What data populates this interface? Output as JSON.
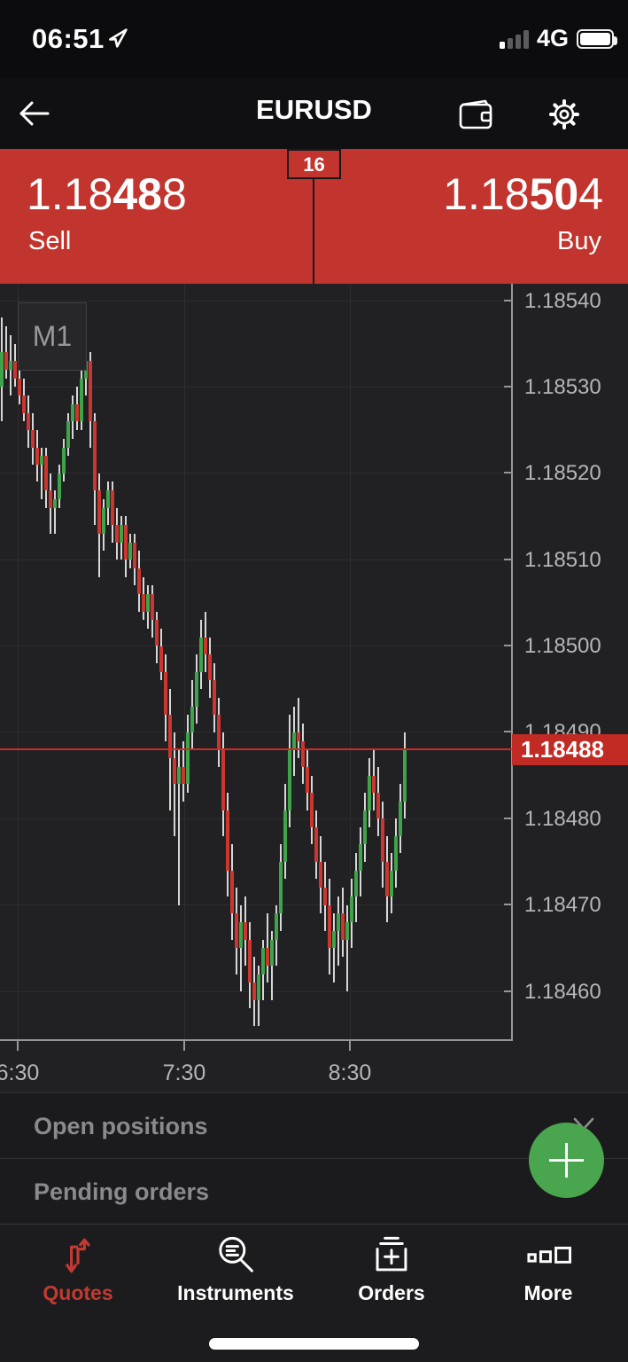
{
  "colors": {
    "panel_red": "#c2342e",
    "price_tag_red": "#c22a24",
    "price_line_red": "#cb2c25",
    "candle_up": "#3fa34a",
    "candle_down": "#cc362e",
    "wick": "#d6d6d6",
    "fab_green": "#4aa64e",
    "active_tab_red": "#c23a32",
    "chart_bg": "#212124"
  },
  "status_bar": {
    "time": "06:51",
    "network": "4G"
  },
  "header": {
    "title": "EURUSD",
    "icons": [
      "back-arrow-icon",
      "wallet-icon",
      "gear-icon"
    ]
  },
  "quote_panel": {
    "sell": {
      "pre": "1.18",
      "bold": "48",
      "post": "8",
      "label": "Sell"
    },
    "buy": {
      "pre": "1.18",
      "bold": "50",
      "post": "4",
      "label": "Buy"
    },
    "spread": "16"
  },
  "chart": {
    "timeframe_label": "M1",
    "current_price": "1.18488"
  },
  "chart_data": {
    "type": "candlestick",
    "symbol": "EURUSD",
    "timeframe": "M1",
    "title": "EURUSD M1 candlestick chart",
    "bid": 1.18488,
    "ask": 1.18504,
    "spread_points": 16,
    "current_price_line": 1.18488,
    "ylim": [
      1.18454,
      1.18542
    ],
    "y_ticks": [
      "1.18540",
      "1.18530",
      "1.18520",
      "1.18510",
      "1.18500",
      "1.18490",
      "1.18480",
      "1.18470",
      "1.18460"
    ],
    "x_ticks": [
      {
        "label": "6:30",
        "x": 20
      },
      {
        "label": "7:30",
        "x": 208
      },
      {
        "label": "8:30",
        "x": 395
      }
    ],
    "time_range_estimate": [
      "6:24",
      "8:51"
    ],
    "price_base": 1.18,
    "price_unit": 1e-05,
    "candles_note": "OHLC as offsets from price_base in units of price_unit, chronological",
    "candles": [
      [
        530,
        538,
        526,
        534
      ],
      [
        534,
        537,
        531,
        532
      ],
      [
        532,
        536,
        529,
        533
      ],
      [
        533,
        535,
        530,
        531
      ],
      [
        531,
        534,
        528,
        529
      ],
      [
        529,
        531,
        526,
        527
      ],
      [
        527,
        529,
        523,
        525
      ],
      [
        525,
        527,
        521,
        523
      ],
      [
        523,
        525,
        519,
        521
      ],
      [
        521,
        523,
        517,
        522
      ],
      [
        522,
        523,
        516,
        518
      ],
      [
        518,
        520,
        513,
        516
      ],
      [
        516,
        518,
        513,
        517
      ],
      [
        517,
        521,
        516,
        520
      ],
      [
        520,
        524,
        519,
        523
      ],
      [
        523,
        527,
        522,
        526
      ],
      [
        526,
        529,
        524,
        528
      ],
      [
        528,
        530,
        525,
        526
      ],
      [
        526,
        532,
        525,
        531
      ],
      [
        531,
        535,
        529,
        533
      ],
      [
        533,
        534,
        523,
        526
      ],
      [
        526,
        527,
        514,
        518
      ],
      [
        518,
        520,
        508,
        513
      ],
      [
        513,
        517,
        511,
        516
      ],
      [
        516,
        519,
        514,
        518
      ],
      [
        518,
        519,
        512,
        514
      ],
      [
        514,
        516,
        510,
        512
      ],
      [
        512,
        515,
        510,
        514
      ],
      [
        514,
        515,
        508,
        510
      ],
      [
        510,
        513,
        509,
        512
      ],
      [
        512,
        513,
        507,
        509
      ],
      [
        509,
        511,
        504,
        506
      ],
      [
        506,
        508,
        503,
        504
      ],
      [
        504,
        507,
        502,
        506
      ],
      [
        506,
        507,
        501,
        503
      ],
      [
        503,
        504,
        498,
        500
      ],
      [
        500,
        502,
        496,
        497
      ],
      [
        497,
        499,
        489,
        492
      ],
      [
        492,
        495,
        481,
        487
      ],
      [
        487,
        490,
        478,
        484
      ],
      [
        484,
        488,
        470,
        486
      ],
      [
        486,
        489,
        482,
        484
      ],
      [
        484,
        492,
        483,
        490
      ],
      [
        490,
        496,
        488,
        493
      ],
      [
        493,
        499,
        491,
        497
      ],
      [
        497,
        503,
        495,
        501
      ],
      [
        501,
        504,
        497,
        499
      ],
      [
        499,
        501,
        494,
        496
      ],
      [
        496,
        498,
        490,
        492
      ],
      [
        492,
        494,
        486,
        488
      ],
      [
        488,
        490,
        478,
        481
      ],
      [
        481,
        483,
        471,
        474
      ],
      [
        474,
        477,
        466,
        469
      ],
      [
        469,
        472,
        462,
        465
      ],
      [
        465,
        470,
        460,
        468
      ],
      [
        468,
        471,
        463,
        466
      ],
      [
        466,
        468,
        458,
        461
      ],
      [
        461,
        464,
        456,
        459
      ],
      [
        459,
        463,
        456,
        462
      ],
      [
        462,
        466,
        459,
        465
      ],
      [
        465,
        469,
        461,
        463
      ],
      [
        463,
        467,
        459,
        466
      ],
      [
        466,
        470,
        463,
        469
      ],
      [
        469,
        477,
        467,
        475
      ],
      [
        475,
        484,
        473,
        481
      ],
      [
        481,
        492,
        479,
        488
      ],
      [
        488,
        493,
        485,
        490
      ],
      [
        490,
        494,
        487,
        489
      ],
      [
        489,
        491,
        484,
        486
      ],
      [
        486,
        488,
        481,
        483
      ],
      [
        483,
        485,
        477,
        479
      ],
      [
        479,
        481,
        473,
        475
      ],
      [
        475,
        478,
        469,
        472
      ],
      [
        472,
        475,
        467,
        470
      ],
      [
        470,
        473,
        462,
        465
      ],
      [
        465,
        469,
        461,
        467
      ],
      [
        467,
        471,
        463,
        469
      ],
      [
        469,
        472,
        464,
        466
      ],
      [
        466,
        470,
        460,
        468
      ],
      [
        468,
        473,
        465,
        471
      ],
      [
        471,
        476,
        468,
        474
      ],
      [
        474,
        479,
        471,
        477
      ],
      [
        477,
        483,
        475,
        481
      ],
      [
        481,
        487,
        479,
        485
      ],
      [
        485,
        488,
        481,
        483
      ],
      [
        483,
        486,
        478,
        480
      ],
      [
        480,
        482,
        472,
        475
      ],
      [
        475,
        478,
        468,
        471
      ],
      [
        471,
        476,
        469,
        474
      ],
      [
        474,
        480,
        472,
        478
      ],
      [
        478,
        484,
        476,
        482
      ],
      [
        482,
        490,
        480,
        488
      ]
    ]
  },
  "positions": {
    "open_label": "Open positions",
    "pending_label": "Pending orders"
  },
  "tab_bar": {
    "items": [
      {
        "label": "Quotes",
        "icon": "quotes-arrows-icon",
        "active": true
      },
      {
        "label": "Instruments",
        "icon": "search-list-icon",
        "active": false
      },
      {
        "label": "Orders",
        "icon": "order-tray-plus-icon",
        "active": false
      },
      {
        "label": "More",
        "icon": "squares-more-icon",
        "active": false
      }
    ]
  }
}
